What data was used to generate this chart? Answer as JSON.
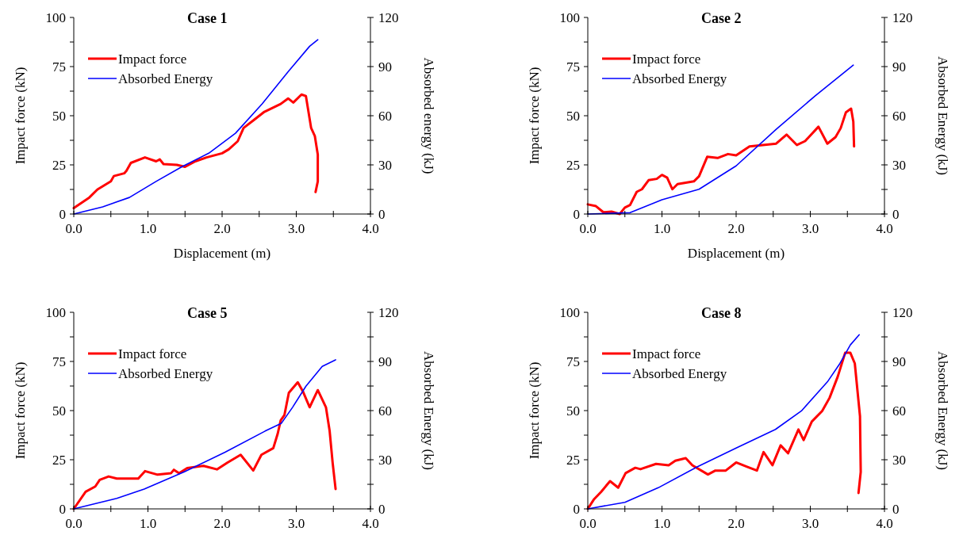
{
  "chart_data": [
    {
      "type": "line",
      "title": "Case 1",
      "xlabel": "Displacement (m)",
      "ylabel": "Impact force (kN)",
      "y2label": "Absorbed energy (kJ)",
      "legend": "top left",
      "line_style": "solid",
      "xlim": [
        0,
        4
      ],
      "xticks": [
        {
          "value": 0,
          "label": "0.0"
        },
        {
          "value": 0.5,
          "label": null
        },
        {
          "value": 1,
          "label": "1.0"
        },
        {
          "value": 1.5,
          "label": null
        },
        {
          "value": 2,
          "label": "2.0"
        },
        {
          "value": 2.5,
          "label": null
        },
        {
          "value": 3,
          "label": "3.0"
        },
        {
          "value": 3.5,
          "label": null
        },
        {
          "value": 4,
          "label": "4.0"
        }
      ],
      "ylim": [
        0,
        100
      ],
      "yticks": [
        0,
        {
          "value": 12.5,
          "label": null
        },
        25,
        {
          "value": 37.5,
          "label": null
        },
        50,
        {
          "value": 62.5,
          "label": null
        },
        75,
        {
          "value": 87.5,
          "label": null
        },
        100
      ],
      "y2lim": [
        0,
        120
      ],
      "y2ticks": [
        0,
        {
          "value": 15,
          "label": null
        },
        30,
        {
          "value": 45,
          "label": null
        },
        60,
        {
          "value": 75,
          "label": null
        },
        90,
        {
          "value": 105,
          "label": null
        },
        120
      ],
      "series": [
        {
          "name": "Impact force",
          "color": "#ff0000",
          "x": [
            0,
            0.21,
            0.32,
            0.5,
            0.54,
            0.68,
            0.71,
            0.77,
            0.96,
            1.11,
            1.16,
            1.21,
            1.39,
            1.5,
            1.64,
            1.79,
            2.0,
            2.09,
            2.21,
            2.29,
            2.43,
            2.57,
            2.79,
            2.89,
            2.96,
            3.07,
            3.13,
            3.2,
            3.25,
            3.29,
            3.29,
            3.26
          ],
          "values": [
            3,
            8.4,
            12.5,
            16.6,
            19.3,
            20.7,
            22,
            26,
            28.8,
            26.8,
            27.8,
            25.4,
            25,
            24,
            26.8,
            28.8,
            30.9,
            32.9,
            37,
            43.8,
            47.9,
            52,
            56,
            58.8,
            56.7,
            60.8,
            60,
            43.8,
            39.7,
            30.2,
            16.6,
            11.2
          ]
        },
        {
          "name": "Absorbed Energy",
          "color": "#0000ff",
          "axis": "y2",
          "x": [
            0,
            0.39,
            0.75,
            1.11,
            1.46,
            1.82,
            2.18,
            2.54,
            2.89,
            3.18,
            3.29
          ],
          "values": [
            0,
            4.4,
            10.1,
            19.9,
            28.9,
            37.1,
            49.3,
            67.3,
            86.9,
            102.4,
            106.4
          ]
        }
      ]
    },
    {
      "type": "line",
      "title": "Case 2",
      "xlabel": "Displacement (m)",
      "ylabel": "Impact force (kN)",
      "y2label": "Absorbed Energy (kJ)",
      "legend": "top left",
      "line_style": "solid",
      "xlim": [
        0,
        4
      ],
      "xticks": [
        {
          "value": 0,
          "label": "0.0"
        },
        {
          "value": 0.5,
          "label": null
        },
        {
          "value": 1,
          "label": "1.0"
        },
        {
          "value": 1.5,
          "label": null
        },
        {
          "value": 2,
          "label": "2.0"
        },
        {
          "value": 2.5,
          "label": null
        },
        {
          "value": 3,
          "label": "3.0"
        },
        {
          "value": 3.5,
          "label": null
        },
        {
          "value": 4,
          "label": "4.0"
        }
      ],
      "ylim": [
        0,
        100
      ],
      "yticks": [
        0,
        {
          "value": 12.5,
          "label": null
        },
        25,
        {
          "value": 37.5,
          "label": null
        },
        50,
        {
          "value": 62.5,
          "label": null
        },
        75,
        {
          "value": 87.5,
          "label": null
        },
        100
      ],
      "y2lim": [
        0,
        120
      ],
      "y2ticks": [
        0,
        {
          "value": 15,
          "label": null
        },
        30,
        {
          "value": 45,
          "label": null
        },
        60,
        {
          "value": 75,
          "label": null
        },
        90,
        {
          "value": 105,
          "label": null
        },
        120
      ],
      "series": [
        {
          "name": "Impact force",
          "color": "#ff0000",
          "x": [
            0,
            0.11,
            0.21,
            0.32,
            0.43,
            0.5,
            0.57,
            0.66,
            0.73,
            0.82,
            0.93,
            1.0,
            1.07,
            1.14,
            1.21,
            1.43,
            1.5,
            1.61,
            1.75,
            1.89,
            2.0,
            2.18,
            2.36,
            2.54,
            2.68,
            2.82,
            2.93,
            3.11,
            3.23,
            3.34,
            3.41,
            3.48,
            3.55,
            3.58,
            3.59
          ],
          "values": [
            4.9,
            4,
            0.9,
            1.2,
            0,
            3.3,
            4.6,
            11.3,
            12.6,
            17.2,
            17.9,
            19.9,
            18.5,
            12.6,
            15.2,
            16.6,
            19.2,
            29.1,
            28.5,
            30.5,
            29.8,
            34.4,
            35.1,
            35.8,
            40.4,
            35.1,
            37.1,
            44.4,
            35.8,
            39.1,
            43.7,
            51.7,
            53.6,
            47,
            34.4
          ]
        },
        {
          "name": "Absorbed Energy",
          "color": "#0000ff",
          "axis": "y2",
          "x": [
            0,
            0.57,
            1.0,
            1.5,
            2.0,
            2.54,
            3.07,
            3.58
          ],
          "values": [
            0,
            0.8,
            8.7,
            15.1,
            29.4,
            51.7,
            72.3,
            90.9
          ]
        }
      ]
    },
    {
      "type": "line",
      "title": "Case 5",
      "ylabel": "Impact force (kN)",
      "y2label": "Absorbed Energy (kJ)",
      "legend": "top left",
      "line_style": "solid",
      "xlim": [
        0,
        4
      ],
      "xticks": [
        {
          "value": 0,
          "label": "0.0"
        },
        {
          "value": 0.5,
          "label": null
        },
        {
          "value": 1,
          "label": "1.0"
        },
        {
          "value": 1.5,
          "label": null
        },
        {
          "value": 2,
          "label": "2.0"
        },
        {
          "value": 2.5,
          "label": null
        },
        {
          "value": 3,
          "label": "3.0"
        },
        {
          "value": 3.5,
          "label": null
        },
        {
          "value": 4,
          "label": "4.0"
        }
      ],
      "ylim": [
        0,
        100
      ],
      "yticks": [
        0,
        {
          "value": 12.5,
          "label": null
        },
        25,
        {
          "value": 37.5,
          "label": null
        },
        50,
        {
          "value": 62.5,
          "label": null
        },
        75,
        {
          "value": 87.5,
          "label": null
        },
        100
      ],
      "y2lim": [
        0,
        120
      ],
      "y2ticks": [
        0,
        {
          "value": 15,
          "label": null
        },
        30,
        {
          "value": 45,
          "label": null
        },
        60,
        {
          "value": 75,
          "label": null
        },
        90,
        {
          "value": 105,
          "label": null
        },
        120
      ],
      "series": [
        {
          "name": "Impact force",
          "color": "#ff0000",
          "x": [
            0,
            0.16,
            0.29,
            0.35,
            0.47,
            0.58,
            0.87,
            0.96,
            1.13,
            1.31,
            1.35,
            1.42,
            1.53,
            1.75,
            1.93,
            2.07,
            2.25,
            2.42,
            2.53,
            2.69,
            2.75,
            2.79,
            2.84,
            2.9,
            3.02,
            3.09,
            3.18,
            3.29,
            3.4,
            3.45,
            3.49,
            3.53
          ],
          "values": [
            0,
            8.7,
            11.4,
            14.8,
            16.5,
            15.4,
            15.4,
            19.2,
            17.4,
            18.1,
            19.9,
            18.1,
            20.8,
            21.9,
            20.1,
            23.5,
            27.5,
            19.5,
            27.5,
            30.9,
            38.3,
            45,
            47.7,
            59.1,
            64.4,
            59.7,
            51.7,
            60.4,
            51.7,
            39.6,
            23.5,
            10.1
          ]
        },
        {
          "name": "Absorbed Energy",
          "color": "#0000ff",
          "axis": "y2",
          "x": [
            0,
            0.58,
            0.95,
            1.49,
            2.04,
            2.58,
            2.8,
            2.95,
            3.13,
            3.35,
            3.53
          ],
          "values": [
            0,
            6.4,
            12.1,
            22.6,
            34.6,
            47.5,
            52.3,
            62,
            74.9,
            87,
            91
          ]
        }
      ]
    },
    {
      "type": "line",
      "title": "Case 8",
      "ylabel": "Impact force (kN)",
      "y2label": "Absorbed Energy (kJ)",
      "legend": "top left",
      "line_style": "solid",
      "xlim": [
        0,
        4
      ],
      "xticks": [
        {
          "value": 0,
          "label": "0.0"
        },
        {
          "value": 0.5,
          "label": null
        },
        {
          "value": 1,
          "label": "1.0"
        },
        {
          "value": 1.5,
          "label": null
        },
        {
          "value": 2,
          "label": "2.0"
        },
        {
          "value": 2.5,
          "label": null
        },
        {
          "value": 3,
          "label": "3.0"
        },
        {
          "value": 3.5,
          "label": null
        },
        {
          "value": 4,
          "label": "4.0"
        }
      ],
      "ylim": [
        0,
        100
      ],
      "yticks": [
        0,
        {
          "value": 12.5,
          "label": null
        },
        25,
        {
          "value": 37.5,
          "label": null
        },
        50,
        {
          "value": 62.5,
          "label": null
        },
        75,
        {
          "value": 87.5,
          "label": null
        },
        100
      ],
      "y2lim": [
        0,
        120
      ],
      "y2ticks": [
        0,
        {
          "value": 15,
          "label": null
        },
        30,
        {
          "value": 45,
          "label": null
        },
        60,
        {
          "value": 75,
          "label": null
        },
        90,
        {
          "value": 105,
          "label": null
        },
        120
      ],
      "series": [
        {
          "name": "Impact force",
          "color": "#ff0000",
          "x": [
            0,
            0.08,
            0.18,
            0.3,
            0.41,
            0.51,
            0.64,
            0.71,
            0.92,
            1.09,
            1.18,
            1.32,
            1.41,
            1.62,
            1.72,
            1.86,
            2.0,
            2.14,
            2.28,
            2.37,
            2.49,
            2.6,
            2.7,
            2.84,
            2.91,
            3.02,
            3.16,
            3.26,
            3.37,
            3.47,
            3.54,
            3.6,
            3.67,
            3.68,
            3.65
          ],
          "values": [
            0,
            4.7,
            8.7,
            14.1,
            10.8,
            18.2,
            20.9,
            20.2,
            22.9,
            22.2,
            24.5,
            25.8,
            22.2,
            17.5,
            19.5,
            19.5,
            23.6,
            21.5,
            19.5,
            28.9,
            22.2,
            32.3,
            28.3,
            40.4,
            35,
            44.4,
            49.8,
            56.5,
            67.3,
            79.4,
            79.4,
            74,
            47.1,
            18.8,
            8.1
          ]
        },
        {
          "name": "Absorbed Energy",
          "color": "#0000ff",
          "axis": "y2",
          "x": [
            0,
            0.5,
            0.95,
            1.48,
            2.0,
            2.53,
            2.88,
            3.23,
            3.4,
            3.54,
            3.66
          ],
          "values": [
            0,
            4,
            12.9,
            25.8,
            37.1,
            48.5,
            59.8,
            77.5,
            88.8,
            100.1,
            106.3
          ]
        }
      ]
    }
  ]
}
